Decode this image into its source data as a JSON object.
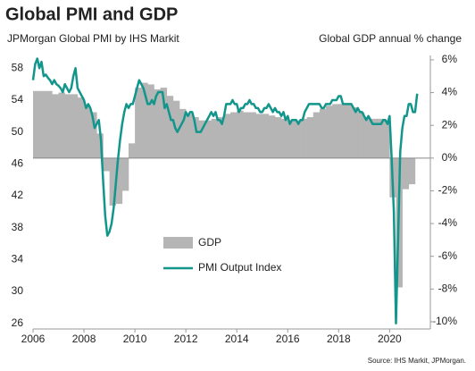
{
  "chart_data": {
    "type": "combo",
    "title": "Global PMI and GDP",
    "y_label": "JPMorgan Global PMI by IHS Markit",
    "y2_label": "Global GDP annual % change",
    "source": "Source: IHS Markit, JPMorgan.",
    "xlim": [
      2006,
      2021.6
    ],
    "xticks": [
      2006,
      2008,
      2010,
      2012,
      2014,
      2016,
      2018,
      2020
    ],
    "ylim": [
      25.3,
      59.6
    ],
    "yticks": [
      26,
      30,
      34,
      38,
      42,
      46,
      50,
      54,
      58
    ],
    "y2lim": [
      -10.44,
      6.27
    ],
    "y2ticks": [
      {
        "value": -10,
        "label": "-10%"
      },
      {
        "value": -8,
        "label": "-8%"
      },
      {
        "value": -6,
        "label": "-6%"
      },
      {
        "value": -4,
        "label": "-4%"
      },
      {
        "value": -2,
        "label": "-2%"
      },
      {
        "value": 0,
        "label": "0%"
      },
      {
        "value": 2,
        "label": "2%"
      },
      {
        "value": 4,
        "label": "4%"
      },
      {
        "value": 6,
        "label": "6%"
      }
    ],
    "series": [
      {
        "name": "GDP",
        "type": "bar",
        "axis": "y2",
        "color": "#b5b5b5",
        "x": [
          2006.125,
          2006.375,
          2006.625,
          2006.875,
          2007.125,
          2007.375,
          2007.625,
          2007.875,
          2008.125,
          2008.375,
          2008.625,
          2008.875,
          2009.125,
          2009.375,
          2009.625,
          2009.875,
          2010.125,
          2010.375,
          2010.625,
          2010.875,
          2011.125,
          2011.375,
          2011.625,
          2011.875,
          2012.125,
          2012.375,
          2012.625,
          2012.875,
          2013.125,
          2013.375,
          2013.625,
          2013.875,
          2014.125,
          2014.375,
          2014.625,
          2014.875,
          2015.125,
          2015.375,
          2015.625,
          2015.875,
          2016.125,
          2016.375,
          2016.625,
          2016.875,
          2017.125,
          2017.375,
          2017.625,
          2017.875,
          2018.125,
          2018.375,
          2018.625,
          2018.875,
          2019.125,
          2019.375,
          2019.625,
          2019.875,
          2020.125,
          2020.375,
          2020.625,
          2020.875
        ],
        "values": [
          4.1,
          4.1,
          4.1,
          3.9,
          4.0,
          3.9,
          3.9,
          3.7,
          3.2,
          2.8,
          1.5,
          -0.8,
          -2.9,
          -2.8,
          -2.0,
          0.9,
          4.3,
          4.6,
          4.5,
          4.2,
          4.3,
          3.8,
          3.5,
          3.0,
          2.7,
          2.5,
          2.3,
          2.3,
          2.4,
          2.5,
          2.7,
          2.8,
          2.9,
          2.8,
          2.8,
          2.7,
          2.7,
          2.6,
          2.5,
          2.4,
          2.3,
          2.3,
          2.4,
          2.5,
          2.8,
          3.0,
          3.2,
          3.3,
          3.3,
          3.3,
          3.1,
          2.8,
          2.5,
          2.4,
          2.4,
          2.3,
          -2.4,
          -7.9,
          -1.9,
          -1.6
        ]
      },
      {
        "name": "PMI Output Index",
        "type": "line",
        "color": "#12968c",
        "x": [
          2006,
          2006.083,
          2006.167,
          2006.25,
          2006.333,
          2006.417,
          2006.5,
          2006.583,
          2006.667,
          2006.75,
          2006.833,
          2006.917,
          2007,
          2007.083,
          2007.167,
          2007.25,
          2007.333,
          2007.417,
          2007.5,
          2007.583,
          2007.667,
          2007.75,
          2007.833,
          2007.917,
          2008,
          2008.083,
          2008.167,
          2008.25,
          2008.333,
          2008.417,
          2008.5,
          2008.583,
          2008.667,
          2008.75,
          2008.833,
          2008.917,
          2009,
          2009.083,
          2009.167,
          2009.25,
          2009.333,
          2009.417,
          2009.5,
          2009.583,
          2009.667,
          2009.75,
          2009.833,
          2009.917,
          2010,
          2010.083,
          2010.167,
          2010.25,
          2010.333,
          2010.417,
          2010.5,
          2010.583,
          2010.667,
          2010.75,
          2010.833,
          2010.917,
          2011,
          2011.083,
          2011.167,
          2011.25,
          2011.333,
          2011.417,
          2011.5,
          2011.583,
          2011.667,
          2011.75,
          2011.833,
          2011.917,
          2012,
          2012.083,
          2012.167,
          2012.25,
          2012.333,
          2012.417,
          2012.5,
          2012.583,
          2012.667,
          2012.75,
          2012.833,
          2012.917,
          2013,
          2013.083,
          2013.167,
          2013.25,
          2013.333,
          2013.417,
          2013.5,
          2013.583,
          2013.667,
          2013.75,
          2013.833,
          2013.917,
          2014,
          2014.083,
          2014.167,
          2014.25,
          2014.333,
          2014.417,
          2014.5,
          2014.583,
          2014.667,
          2014.75,
          2014.833,
          2014.917,
          2015,
          2015.083,
          2015.167,
          2015.25,
          2015.333,
          2015.417,
          2015.5,
          2015.583,
          2015.667,
          2015.75,
          2015.833,
          2015.917,
          2016,
          2016.083,
          2016.167,
          2016.25,
          2016.333,
          2016.417,
          2016.5,
          2016.583,
          2016.667,
          2016.75,
          2016.833,
          2016.917,
          2017,
          2017.083,
          2017.167,
          2017.25,
          2017.333,
          2017.417,
          2017.5,
          2017.583,
          2017.667,
          2017.75,
          2017.833,
          2017.917,
          2018,
          2018.083,
          2018.167,
          2018.25,
          2018.333,
          2018.417,
          2018.5,
          2018.583,
          2018.667,
          2018.75,
          2018.833,
          2018.917,
          2019,
          2019.083,
          2019.167,
          2019.25,
          2019.333,
          2019.417,
          2019.5,
          2019.583,
          2019.667,
          2019.75,
          2019.833,
          2019.917,
          2020,
          2020.083,
          2020.167,
          2020.25,
          2020.333,
          2020.417,
          2020.5,
          2020.583,
          2020.667,
          2020.75,
          2020.833,
          2020.917,
          2021,
          2021.083
        ],
        "values": [
          56.5,
          58.5,
          59.2,
          58.0,
          58.8,
          57.0,
          57.2,
          56.8,
          56.5,
          56.0,
          56.5,
          56.0,
          55.8,
          55.5,
          55.0,
          56.0,
          55.5,
          55.0,
          55.5,
          57.0,
          58.0,
          55.5,
          55.0,
          54.5,
          54.0,
          53.0,
          53.5,
          53.0,
          52.0,
          50.5,
          51.0,
          51.5,
          49.0,
          44.0,
          39.5,
          37.0,
          37.5,
          38.5,
          40.5,
          43.5,
          46.5,
          49.0,
          51.0,
          52.5,
          53.5,
          53.0,
          53.5,
          53.5,
          54.5,
          55.5,
          56.5,
          56.0,
          55.5,
          54.5,
          53.5,
          53.5,
          54.0,
          53.5,
          54.5,
          55.0,
          55.0,
          55.0,
          53.0,
          53.5,
          52.5,
          51.5,
          51.5,
          50.5,
          50.0,
          50.5,
          51.0,
          51.5,
          52.5,
          52.0,
          52.5,
          52.5,
          51.5,
          50.0,
          50.0,
          50.0,
          50.5,
          51.0,
          51.5,
          52.0,
          52.5,
          52.0,
          52.5,
          51.5,
          51.5,
          51.0,
          52.0,
          53.5,
          53.5,
          53.5,
          54.0,
          53.5,
          53.5,
          52.5,
          53.0,
          53.0,
          53.5,
          53.5,
          54.0,
          53.5,
          53.5,
          53.0,
          53.0,
          52.5,
          52.5,
          53.0,
          53.0,
          53.5,
          53.0,
          52.5,
          53.0,
          52.5,
          52.5,
          52.0,
          52.5,
          51.5,
          52.0,
          51.0,
          51.5,
          51.5,
          51.5,
          51.0,
          51.5,
          51.5,
          52.5,
          53.0,
          53.5,
          53.5,
          53.5,
          53.5,
          53.5,
          53.5,
          53.0,
          53.0,
          53.5,
          53.5,
          53.5,
          54.0,
          54.0,
          54.0,
          54.5,
          54.5,
          53.5,
          53.5,
          53.5,
          53.5,
          53.5,
          53.0,
          52.5,
          53.0,
          52.5,
          52.5,
          52.0,
          51.5,
          52.0,
          51.5,
          51.0,
          51.0,
          51.0,
          51.0,
          51.0,
          51.5,
          51.5,
          51.0,
          52.0,
          46.5,
          40.0,
          26.0,
          36.5,
          47.5,
          50.5,
          52.0,
          52.0,
          53.5,
          53.5,
          52.5,
          52.5,
          54.8
        ]
      }
    ]
  }
}
